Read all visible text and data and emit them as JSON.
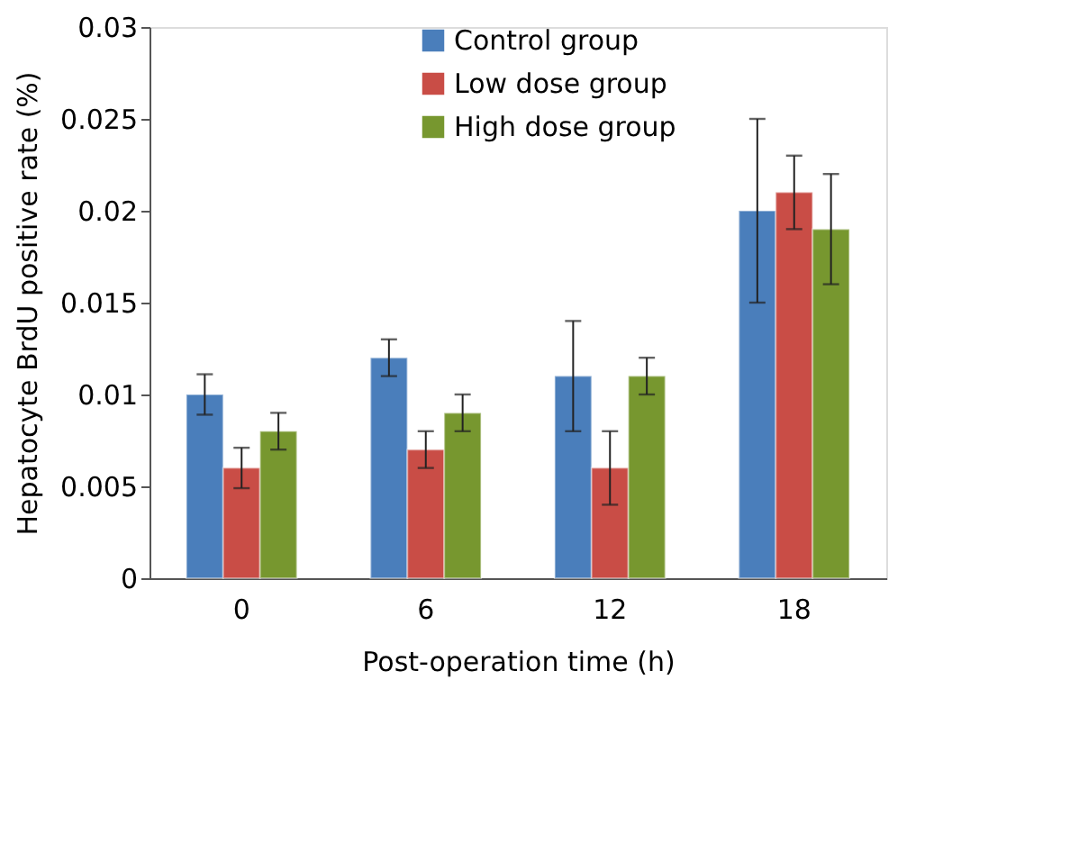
{
  "chart_data": {
    "type": "bar",
    "xlabel": "Post-operation time (h)",
    "ylabel": "Hepatocyte BrdU positive rate (%)",
    "categories": [
      "0",
      "6",
      "12",
      "18"
    ],
    "series": [
      {
        "name": "Control group",
        "color": "#4a7ebb",
        "values": [
          0.01,
          0.012,
          0.011,
          0.02
        ],
        "errors": [
          0.0011,
          0.001,
          0.003,
          0.005
        ]
      },
      {
        "name": "Low dose group",
        "color": "#c94d46",
        "values": [
          0.006,
          0.007,
          0.006,
          0.021
        ],
        "errors": [
          0.0011,
          0.001,
          0.002,
          0.002
        ]
      },
      {
        "name": "High dose group",
        "color": "#77972f",
        "values": [
          0.008,
          0.009,
          0.011,
          0.019
        ],
        "errors": [
          0.001,
          0.001,
          0.001,
          0.003
        ]
      }
    ],
    "ylim": [
      0,
      0.03
    ],
    "yticks": [
      0,
      0.005,
      0.01,
      0.015,
      0.02,
      0.025,
      0.03
    ],
    "grid": false,
    "legend": "top"
  }
}
